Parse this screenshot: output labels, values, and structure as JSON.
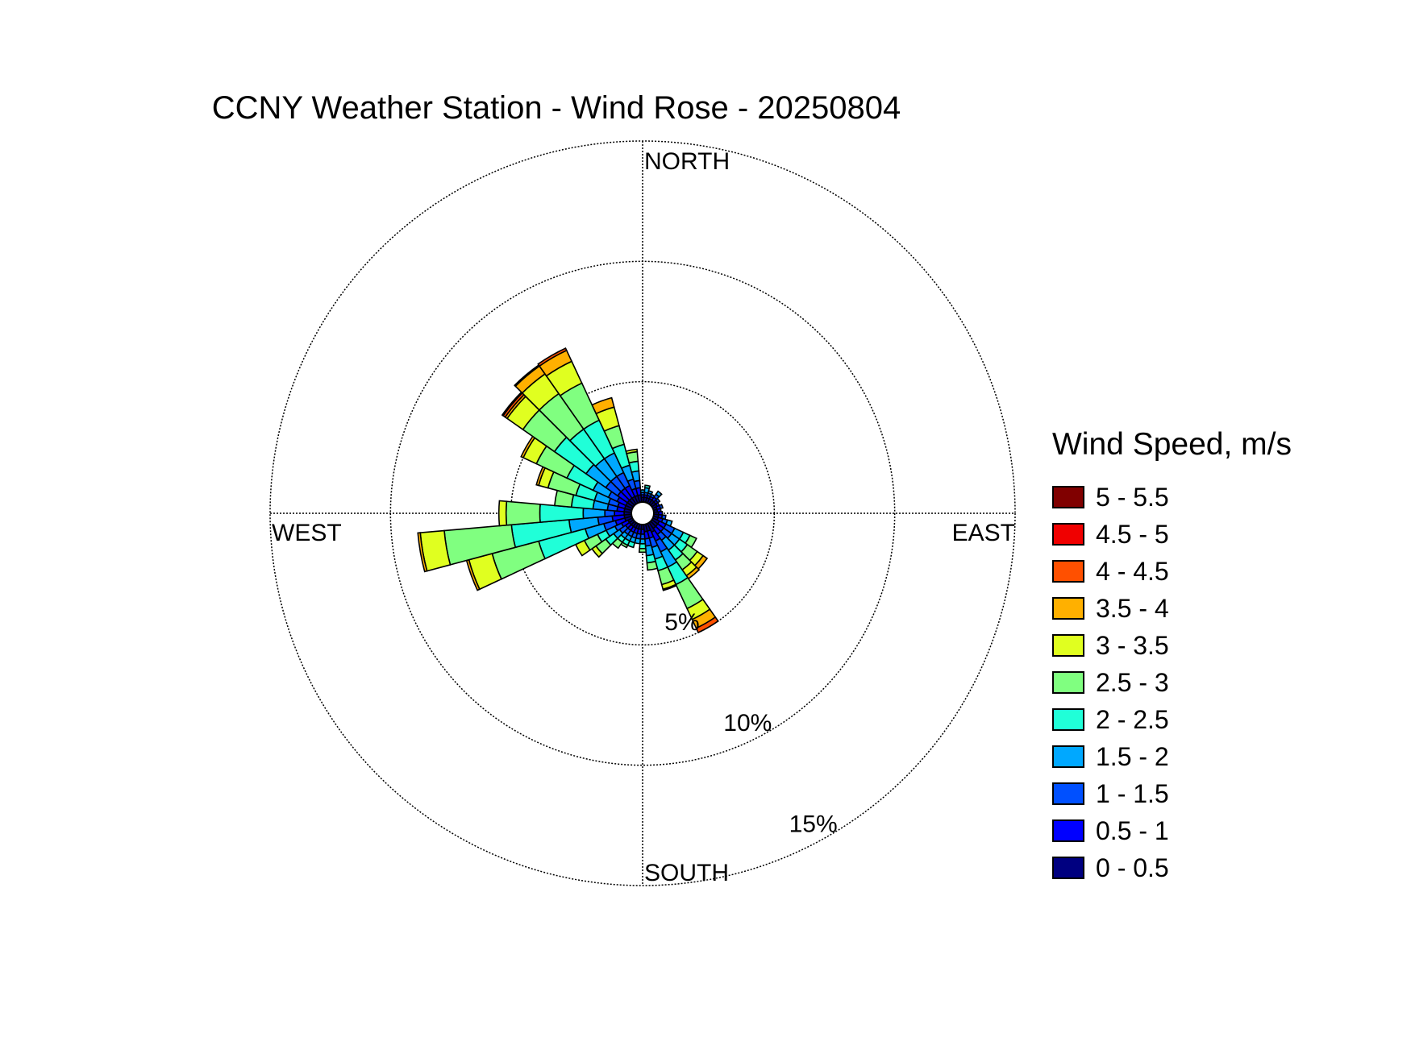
{
  "chart_data": {
    "type": "windrose",
    "title": "CCNY Weather Station - Wind Rose - 20250804",
    "direction_labels": {
      "north": "NORTH",
      "east": "EAST",
      "south": "SOUTH",
      "west": "WEST"
    },
    "radial_axis": {
      "ticks": [
        5,
        10,
        15
      ],
      "tick_labels": [
        "5%",
        "10%",
        "15%"
      ],
      "max": 15,
      "unit": "%"
    },
    "legend_title": "Wind Speed, m/s",
    "bins": [
      {
        "label": "0 - 0.5",
        "color": "#000080"
      },
      {
        "label": "0.5 - 1",
        "color": "#0000ff"
      },
      {
        "label": "1 - 1.5",
        "color": "#0050ff"
      },
      {
        "label": "1.5 - 2",
        "color": "#00a8ff"
      },
      {
        "label": "2 - 2.5",
        "color": "#20ffd8"
      },
      {
        "label": "2.5 - 3",
        "color": "#80ff80"
      },
      {
        "label": "3 - 3.5",
        "color": "#e0ff20"
      },
      {
        "label": "3.5 - 4",
        "color": "#ffb000"
      },
      {
        "label": "4 - 4.5",
        "color": "#ff5000"
      },
      {
        "label": "4.5 - 5",
        "color": "#f00000"
      },
      {
        "label": "5 - 5.5",
        "color": "#800000"
      }
    ],
    "sector_width_deg": 10,
    "sectors": [
      {
        "dir": 0,
        "cum": [
          0.2,
          0.3,
          0.4,
          0.5
        ]
      },
      {
        "dir": 10,
        "cum": [
          0.2,
          0.3,
          0.4,
          0.6,
          0.7
        ]
      },
      {
        "dir": 20,
        "cum": [
          0.2,
          0.3,
          0.4,
          0.5
        ]
      },
      {
        "dir": 30,
        "cum": [
          0.2,
          0.3,
          0.4
        ]
      },
      {
        "dir": 40,
        "cum": [
          0.2,
          0.35,
          0.5,
          0.65
        ]
      },
      {
        "dir": 50,
        "cum": [
          0.2,
          0.3,
          0.4
        ]
      },
      {
        "dir": 60,
        "cum": [
          0.2,
          0.3
        ]
      },
      {
        "dir": 70,
        "cum": [
          0.15,
          0.3,
          0.4
        ]
      },
      {
        "dir": 80,
        "cum": [
          0.15,
          0.3
        ]
      },
      {
        "dir": 90,
        "cum": [
          0.2,
          0.35
        ]
      },
      {
        "dir": 100,
        "cum": [
          0.2,
          0.35,
          0.5
        ]
      },
      {
        "dir": 110,
        "cum": [
          0.2,
          0.4,
          0.6,
          0.8
        ]
      },
      {
        "dir": 120,
        "cum": [
          0.3,
          0.6,
          1.0,
          1.4,
          1.7,
          2.0
        ]
      },
      {
        "dir": 130,
        "cum": [
          0.3,
          0.6,
          1.0,
          1.4,
          1.8,
          2.3,
          2.6,
          2.8
        ]
      },
      {
        "dir": 140,
        "cum": [
          0.3,
          0.6,
          0.9,
          1.4,
          1.9,
          2.4,
          2.7,
          2.85
        ]
      },
      {
        "dir": 150,
        "cum": [
          0.4,
          0.8,
          1.3,
          2.0,
          2.8,
          3.9,
          4.4,
          4.8,
          5.0
        ]
      },
      {
        "dir": 160,
        "cum": [
          0.3,
          0.6,
          1.0,
          1.5,
          2.0,
          2.6,
          2.8,
          2.85
        ]
      },
      {
        "dir": 170,
        "cum": [
          0.3,
          0.6,
          0.9,
          1.3,
          1.6,
          1.9
        ]
      },
      {
        "dir": 180,
        "cum": [
          0.2,
          0.4,
          0.6,
          0.8,
          1.0,
          1.15
        ]
      },
      {
        "dir": 190,
        "cum": [
          0.2,
          0.4,
          0.6,
          0.8
        ]
      },
      {
        "dir": 200,
        "cum": [
          0.2,
          0.4,
          0.6,
          0.8,
          1.0
        ]
      },
      {
        "dir": 210,
        "cum": [
          0.2,
          0.4,
          0.6,
          0.8,
          1.0,
          1.1
        ]
      },
      {
        "dir": 220,
        "cum": [
          0.2,
          0.4,
          0.6,
          0.8,
          1.0,
          1.3
        ]
      },
      {
        "dir": 230,
        "cum": [
          0.2,
          0.4,
          0.7,
          1.0,
          1.4,
          1.9,
          2.1
        ]
      },
      {
        "dir": 240,
        "cum": [
          0.2,
          0.5,
          0.8,
          1.2,
          1.6,
          2.2,
          2.6
        ]
      },
      {
        "dir": 250,
        "cum": [
          0.3,
          0.7,
          1.2,
          2.0,
          4.0,
          6.0,
          7.0,
          7.1
        ]
      },
      {
        "dir": 260,
        "cum": [
          0.3,
          0.8,
          1.4,
          2.6,
          5.0,
          7.8,
          8.8,
          8.9
        ]
      },
      {
        "dir": 270,
        "cum": [
          0.3,
          0.7,
          1.1,
          2.0,
          3.8,
          5.2,
          5.5
        ]
      },
      {
        "dir": 280,
        "cum": [
          0.3,
          0.6,
          1.0,
          1.6,
          2.5,
          3.2
        ]
      },
      {
        "dir": 290,
        "cum": [
          0.3,
          0.6,
          1.0,
          1.6,
          2.4,
          3.6,
          4.0,
          4.1
        ]
      },
      {
        "dir": 300,
        "cum": [
          0.3,
          0.7,
          1.1,
          1.8,
          3.0,
          4.4,
          5.0,
          5.1
        ]
      },
      {
        "dir": 310,
        "cum": [
          0.3,
          0.8,
          1.4,
          2.4,
          4.0,
          5.6,
          6.4,
          6.5,
          6.6,
          6.65
        ]
      },
      {
        "dir": 320,
        "cum": [
          0.3,
          0.8,
          1.4,
          2.3,
          3.8,
          5.6,
          6.6,
          7.0,
          7.05
        ]
      },
      {
        "dir": 330,
        "cum": [
          0.3,
          0.8,
          1.4,
          2.3,
          3.8,
          5.5,
          6.5,
          7.0,
          7.1
        ]
      },
      {
        "dir": 340,
        "cum": [
          0.3,
          0.6,
          1.0,
          1.6,
          2.5,
          3.3,
          4.1,
          4.5
        ]
      },
      {
        "dir": 350,
        "cum": [
          0.3,
          0.6,
          0.9,
          1.3,
          1.7,
          2.1,
          2.2
        ]
      }
    ]
  }
}
